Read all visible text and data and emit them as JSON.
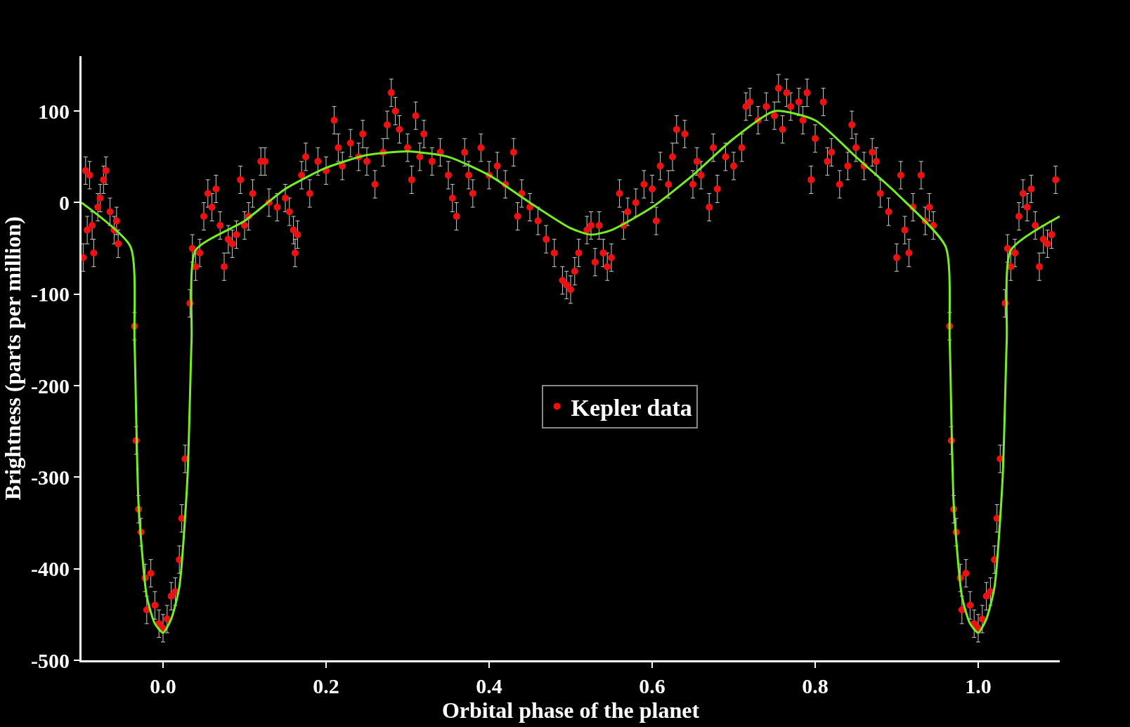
{
  "chart_data": {
    "type": "scatter",
    "xlabel": "Orbital phase of the planet",
    "ylabel": "Brightness (parts per million)",
    "xlim": [
      -0.1,
      1.1
    ],
    "ylim": [
      -500,
      160
    ],
    "xticks": [
      {
        "value": 0,
        "label": "0.0"
      },
      0.2,
      0.4,
      0.6,
      0.8,
      {
        "value": 1,
        "label": "1.0"
      }
    ],
    "yticks": [
      -500,
      -400,
      -300,
      -200,
      -100,
      0,
      100
    ],
    "grid": false,
    "legend": "center",
    "series": [
      {
        "name": "Kepler data",
        "color": "#ee1111",
        "marker": "circle",
        "x": [
          -0.098,
          -0.095,
          -0.093,
          -0.09,
          -0.087,
          -0.085,
          -0.08,
          -0.077,
          -0.073,
          -0.07,
          -0.065,
          -0.06,
          -0.057,
          -0.055,
          -0.035,
          -0.033,
          -0.03,
          -0.027,
          -0.022,
          -0.02,
          -0.015,
          -0.01,
          -0.005,
          0,
          0.005,
          0.01,
          0.015,
          0.02,
          0.023,
          0.027,
          0.033,
          0.036,
          0.04,
          0.045,
          0.05,
          0.055,
          0.06,
          0.065,
          0.07,
          0.075,
          0.08,
          0.085,
          0.09,
          0.095,
          0.1,
          0.105,
          0.11,
          0.12,
          0.125,
          0.13,
          0.14,
          0.15,
          0.155,
          0.16,
          0.162,
          0.165,
          0.17,
          0.175,
          0.18,
          0.19,
          0.2,
          0.21,
          0.215,
          0.22,
          0.23,
          0.24,
          0.245,
          0.25,
          0.26,
          0.27,
          0.275,
          0.28,
          0.285,
          0.29,
          0.3,
          0.305,
          0.31,
          0.315,
          0.32,
          0.33,
          0.34,
          0.35,
          0.355,
          0.36,
          0.37,
          0.375,
          0.38,
          0.39,
          0.4,
          0.41,
          0.42,
          0.43,
          0.435,
          0.44,
          0.45,
          0.46,
          0.47,
          0.48,
          0.49,
          0.495,
          0.5,
          0.505,
          0.51,
          0.52,
          0.525,
          0.53,
          0.535,
          0.54,
          0.545,
          0.55,
          0.56,
          0.565,
          0.57,
          0.58,
          0.59,
          0.6,
          0.605,
          0.61,
          0.62,
          0.625,
          0.63,
          0.64,
          0.65,
          0.655,
          0.66,
          0.67,
          0.675,
          0.68,
          0.69,
          0.7,
          0.71,
          0.715,
          0.72,
          0.73,
          0.74,
          0.75,
          0.755,
          0.76,
          0.765,
          0.77,
          0.78,
          0.785,
          0.79,
          0.795,
          0.8,
          0.81,
          0.815,
          0.82,
          0.83,
          0.84,
          0.845,
          0.85,
          0.86,
          0.87,
          0.875,
          0.88,
          0.89,
          0.9,
          0.905,
          0.91,
          0.915,
          0.92,
          0.93,
          0.935,
          0.94,
          0.945,
          0.965,
          0.967,
          0.97,
          0.973,
          0.978,
          0.98,
          0.985,
          0.99,
          0.995,
          1.0,
          1.005,
          1.01,
          1.015,
          1.02,
          1.023,
          1.027,
          1.033,
          1.036,
          1.04,
          1.045,
          1.05,
          1.055,
          1.06,
          1.065,
          1.07,
          1.075,
          1.08,
          1.085,
          1.09,
          1.095
        ],
        "values": [
          -60,
          35,
          -30,
          30,
          -25,
          -55,
          -5,
          5,
          25,
          35,
          -10,
          -30,
          -20,
          -45,
          -135,
          -260,
          -335,
          -360,
          -410,
          -445,
          -405,
          -440,
          -460,
          -465,
          -455,
          -430,
          -425,
          -390,
          -345,
          -280,
          -110,
          -50,
          -70,
          -55,
          -15,
          10,
          -5,
          15,
          -25,
          -70,
          -40,
          -45,
          -35,
          25,
          -25,
          -15,
          10,
          45,
          45,
          0,
          -5,
          5,
          -10,
          -30,
          -55,
          -35,
          30,
          50,
          10,
          45,
          35,
          90,
          60,
          40,
          65,
          50,
          75,
          45,
          20,
          55,
          85,
          120,
          100,
          80,
          60,
          25,
          95,
          50,
          75,
          45,
          55,
          30,
          5,
          -15,
          55,
          30,
          10,
          60,
          30,
          40,
          20,
          55,
          -15,
          10,
          -5,
          -20,
          -40,
          -55,
          -85,
          -90,
          -95,
          -75,
          -55,
          -30,
          -25,
          -65,
          -25,
          -55,
          -70,
          -60,
          10,
          -25,
          -10,
          0,
          20,
          15,
          -20,
          40,
          20,
          50,
          80,
          75,
          20,
          45,
          30,
          -5,
          60,
          15,
          50,
          40,
          60,
          105,
          110,
          90,
          105,
          95,
          125,
          80,
          120,
          105,
          110,
          90,
          120,
          25,
          70,
          110,
          45,
          55,
          20,
          40,
          85,
          60,
          40,
          55,
          45,
          10,
          -10,
          -60,
          30,
          -30,
          -55,
          -5,
          30,
          -20,
          -5,
          -25,
          -135,
          -260,
          -335,
          -360,
          -410,
          -445,
          -405,
          -440,
          -460,
          -465,
          -455,
          -430,
          -425,
          -390,
          -345,
          -280,
          -110,
          -50,
          -70,
          -55,
          -15,
          10,
          -5,
          15,
          -25,
          -70,
          -40,
          -45,
          -35,
          25
        ],
        "errors": [
          15,
          15,
          15,
          15,
          15,
          15,
          15,
          15,
          15,
          15,
          15,
          15,
          15,
          15,
          15,
          15,
          15,
          15,
          15,
          15,
          15,
          15,
          15,
          15,
          15,
          15,
          15,
          15,
          15,
          15,
          15,
          15,
          15,
          15,
          15,
          15,
          15,
          15,
          15,
          15,
          15,
          15,
          15,
          15,
          15,
          15,
          15,
          15,
          15,
          15,
          15,
          15,
          15,
          15,
          15,
          15,
          15,
          15,
          15,
          15,
          15,
          15,
          15,
          15,
          15,
          15,
          15,
          15,
          15,
          15,
          15,
          15,
          15,
          15,
          15,
          15,
          15,
          15,
          15,
          15,
          15,
          15,
          15,
          15,
          15,
          15,
          15,
          15,
          15,
          15,
          15,
          15,
          15,
          15,
          15,
          15,
          15,
          15,
          15,
          15,
          15,
          15,
          15,
          15,
          15,
          15,
          15,
          15,
          15,
          15,
          15,
          15,
          15,
          15,
          15,
          15,
          15,
          15,
          15,
          15,
          15,
          15,
          15,
          15,
          15,
          15,
          15,
          15,
          15,
          15,
          15,
          15,
          15,
          15,
          15,
          15,
          15,
          15,
          15,
          15,
          15,
          15,
          15,
          15,
          15,
          15,
          15,
          15,
          15,
          15,
          15,
          15,
          15,
          15,
          15,
          15,
          15,
          15,
          15,
          15,
          15,
          15,
          15,
          15,
          15,
          15,
          15,
          15,
          15,
          15,
          15,
          15,
          15,
          15,
          15,
          15,
          15,
          15,
          15,
          15,
          15,
          15,
          15,
          15,
          15,
          15,
          15,
          15,
          15,
          15,
          15,
          15,
          15,
          15,
          15,
          15
        ]
      },
      {
        "color": "#77ee22",
        "type": "line",
        "x": [
          -0.1,
          -0.04,
          -0.035,
          -0.03,
          -0.02,
          -0.01,
          0,
          0.01,
          0.02,
          0.03,
          0.035,
          0.04,
          0.1,
          0.15,
          0.2,
          0.25,
          0.3,
          0.35,
          0.4,
          0.45,
          0.5,
          0.525,
          0.55,
          0.6,
          0.65,
          0.7,
          0.75,
          0.8,
          0.85,
          0.9,
          0.96,
          0.965,
          0.97,
          0.98,
          0.99,
          1.0,
          1.01,
          1.02,
          1.03,
          1.035,
          1.04,
          1.1
        ],
        "values": [
          0,
          -48,
          -150,
          -330,
          -430,
          -460,
          -470,
          -455,
          -420,
          -300,
          -150,
          -52,
          -20,
          15,
          38,
          52,
          56,
          50,
          30,
          0,
          -28,
          -35,
          -30,
          -5,
          30,
          70,
          100,
          90,
          50,
          10,
          -48,
          -150,
          -330,
          -430,
          -460,
          -470,
          -455,
          -420,
          -300,
          -150,
          -52,
          -15
        ]
      }
    ]
  }
}
